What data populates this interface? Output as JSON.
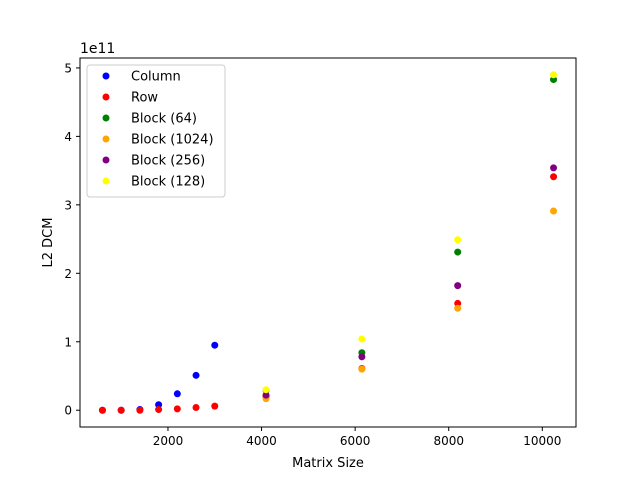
{
  "chart_data": {
    "type": "scatter",
    "title": "",
    "xlabel": "Matrix Size",
    "ylabel": "L2 DCM",
    "y_offset_text": "1e11",
    "xlim": [
      120,
      10720
    ],
    "ylim": [
      -0.245,
      5.145
    ],
    "xticks": [
      2000,
      4000,
      6000,
      8000,
      10000
    ],
    "xtick_labels": [
      "2000",
      "4000",
      "6000",
      "8000",
      "10000"
    ],
    "yticks": [
      0,
      1,
      2,
      3,
      4,
      5
    ],
    "ytick_labels": [
      "0",
      "1",
      "2",
      "3",
      "4",
      "5"
    ],
    "grid": false,
    "legend_position": "upper-left",
    "series": [
      {
        "name": "Column",
        "color": "#0000ff",
        "points": [
          [
            600,
            0
          ],
          [
            1000,
            0
          ],
          [
            1400,
            0.01
          ],
          [
            1800,
            0.08
          ],
          [
            2200,
            0.24
          ],
          [
            2600,
            0.51
          ],
          [
            3000,
            0.95
          ]
        ]
      },
      {
        "name": "Row",
        "color": "#ff0000",
        "points": [
          [
            600,
            0
          ],
          [
            1000,
            0
          ],
          [
            1400,
            0
          ],
          [
            1800,
            0.01
          ],
          [
            2200,
            0.02
          ],
          [
            2600,
            0.04
          ],
          [
            3000,
            0.06
          ],
          [
            4096,
            0.2
          ],
          [
            6144,
            0.61
          ],
          [
            8192,
            1.56
          ],
          [
            10240,
            3.41
          ]
        ]
      },
      {
        "name": "Block (64)",
        "color": "#008000",
        "points": [
          [
            4096,
            0.29
          ],
          [
            6144,
            0.84
          ],
          [
            8192,
            2.31
          ],
          [
            10240,
            4.83
          ]
        ]
      },
      {
        "name": "Block (1024)",
        "color": "#ffa500",
        "points": [
          [
            4096,
            0.17
          ],
          [
            6144,
            0.6
          ],
          [
            8192,
            1.49
          ],
          [
            10240,
            2.91
          ]
        ]
      },
      {
        "name": "Block (256)",
        "color": "#800080",
        "points": [
          [
            4096,
            0.22
          ],
          [
            6144,
            0.78
          ],
          [
            8192,
            1.82
          ],
          [
            10240,
            3.54
          ]
        ]
      },
      {
        "name": "Block (128)",
        "color": "#ffff00",
        "points": [
          [
            4096,
            0.3
          ],
          [
            6144,
            1.04
          ],
          [
            8192,
            2.49
          ],
          [
            10240,
            4.9
          ]
        ]
      }
    ]
  }
}
